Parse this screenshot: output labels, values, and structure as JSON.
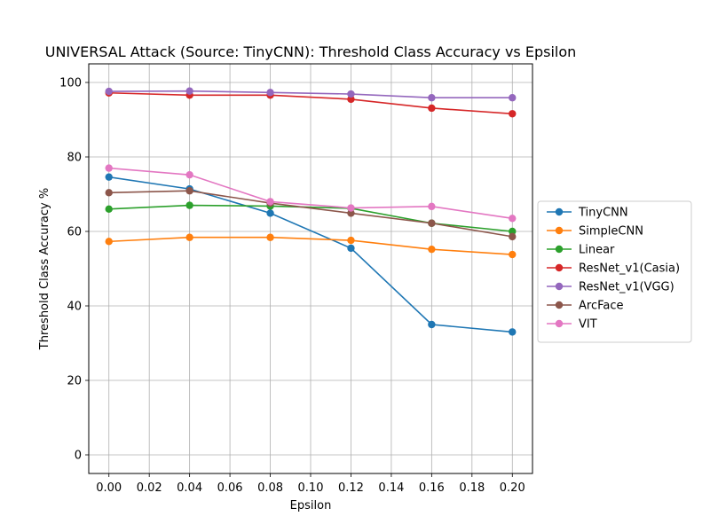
{
  "chart_data": {
    "type": "line",
    "title": "UNIVERSAL Attack (Source: TinyCNN): Threshold Class Accuracy vs Epsilon",
    "xlabel": "Epsilon",
    "ylabel": "Threshold Class Accuracy %",
    "x": [
      0.0,
      0.04,
      0.08,
      0.12,
      0.16,
      0.2
    ],
    "xlim": [
      -0.01,
      0.21
    ],
    "ylim": [
      -5,
      105
    ],
    "xticks": [
      0.0,
      0.02,
      0.04,
      0.06,
      0.08,
      0.1,
      0.12,
      0.14,
      0.16,
      0.18,
      0.2
    ],
    "xtick_labels": [
      "0.00",
      "0.02",
      "0.04",
      "0.06",
      "0.08",
      "0.10",
      "0.12",
      "0.14",
      "0.16",
      "0.18",
      "0.20"
    ],
    "yticks": [
      0,
      20,
      40,
      60,
      80,
      100
    ],
    "ytick_labels": [
      "0",
      "20",
      "40",
      "60",
      "80",
      "100"
    ],
    "grid": true,
    "legend_position": "outside-right",
    "series": [
      {
        "name": "TinyCNN",
        "color": "#1f77b4",
        "values": [
          74.6,
          71.4,
          64.9,
          55.5,
          35.0,
          33.0
        ]
      },
      {
        "name": "SimpleCNN",
        "color": "#ff7f0e",
        "values": [
          57.3,
          58.4,
          58.4,
          57.6,
          55.2,
          53.8
        ]
      },
      {
        "name": "Linear",
        "color": "#2ca02c",
        "values": [
          66.0,
          67.0,
          66.8,
          66.2,
          62.2,
          60.0
        ]
      },
      {
        "name": "ResNet_v1(Casia)",
        "color": "#d62728",
        "values": [
          97.2,
          96.6,
          96.6,
          95.5,
          93.1,
          91.6
        ]
      },
      {
        "name": "ResNet_v1(VGG)",
        "color": "#9467bd",
        "values": [
          97.6,
          97.7,
          97.3,
          96.9,
          95.9,
          95.9
        ]
      },
      {
        "name": "ArcFace",
        "color": "#8c564b",
        "values": [
          70.4,
          70.9,
          67.6,
          64.9,
          62.2,
          58.6
        ]
      },
      {
        "name": "VIT",
        "color": "#e377c2",
        "values": [
          77.0,
          75.2,
          68.0,
          66.3,
          66.7,
          63.5
        ]
      }
    ]
  }
}
